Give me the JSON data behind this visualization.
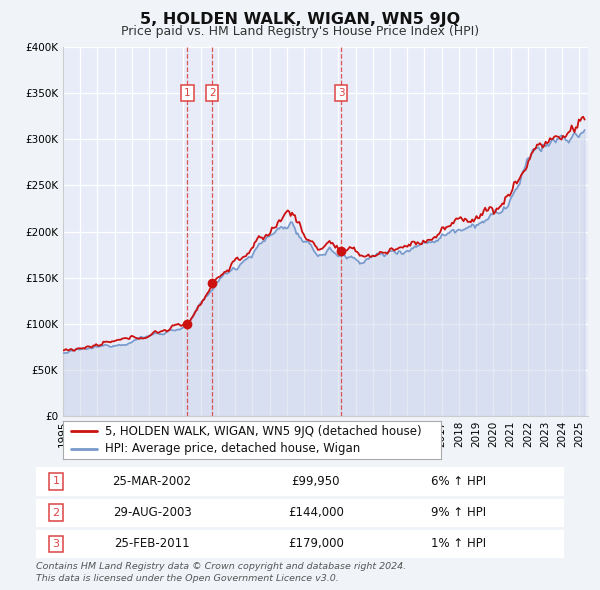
{
  "title": "5, HOLDEN WALK, WIGAN, WN5 9JQ",
  "subtitle": "Price paid vs. HM Land Registry's House Price Index (HPI)",
  "ylim": [
    0,
    400000
  ],
  "yticks": [
    0,
    50000,
    100000,
    150000,
    200000,
    250000,
    300000,
    350000,
    400000
  ],
  "ytick_labels": [
    "£0",
    "£50K",
    "£100K",
    "£150K",
    "£200K",
    "£250K",
    "£300K",
    "£350K",
    "£400K"
  ],
  "xlim_start": 1995.0,
  "xlim_end": 2025.5,
  "background_color": "#f0f4f8",
  "plot_bg_color": "#e8ecf8",
  "grid_color": "#ffffff",
  "hpi_line_color": "#7799cc",
  "hpi_fill_color": "#c5d0e8",
  "price_line_color": "#cc1111",
  "sale_marker_color": "#cc1111",
  "dashed_line_color": "#dd4444",
  "sales": [
    {
      "date_dec": 2002.23,
      "price": 99950,
      "label": "1"
    },
    {
      "date_dec": 2003.66,
      "price": 144000,
      "label": "2"
    },
    {
      "date_dec": 2011.15,
      "price": 179000,
      "label": "3"
    }
  ],
  "legend_label_red": "5, HOLDEN WALK, WIGAN, WN5 9JQ (detached house)",
  "legend_label_blue": "HPI: Average price, detached house, Wigan",
  "table_rows": [
    {
      "num": "1",
      "date": "25-MAR-2002",
      "price": "£99,950",
      "hpi": "6% ↑ HPI"
    },
    {
      "num": "2",
      "date": "29-AUG-2003",
      "price": "£144,000",
      "hpi": "9% ↑ HPI"
    },
    {
      "num": "3",
      "date": "25-FEB-2011",
      "price": "£179,000",
      "hpi": "1% ↑ HPI"
    }
  ],
  "footer": "Contains HM Land Registry data © Crown copyright and database right 2024.\nThis data is licensed under the Open Government Licence v3.0.",
  "title_fontsize": 11.5,
  "subtitle_fontsize": 9,
  "tick_fontsize": 7.5,
  "legend_fontsize": 8.5,
  "table_num_fontsize": 8,
  "table_fontsize": 8.5,
  "footer_fontsize": 6.8
}
